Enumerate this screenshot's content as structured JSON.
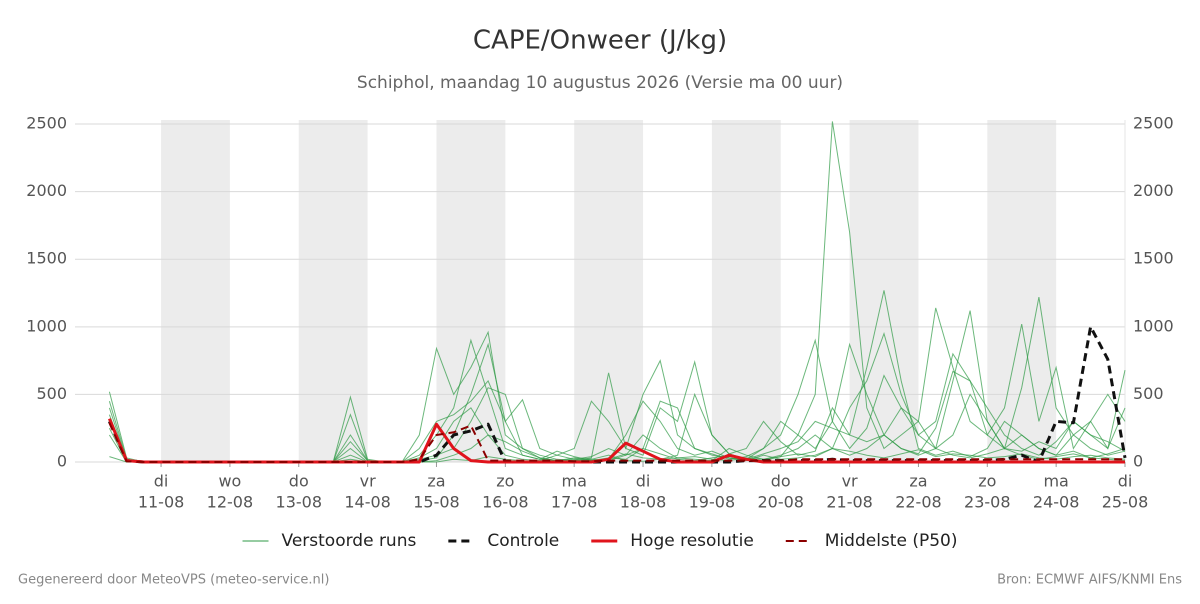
{
  "chart_data": {
    "type": "line",
    "title": "CAPE/Onweer (J/kg)",
    "subtitle": "Schiphol, maandag 10 augustus 2026 (Versie ma 00 uur)",
    "footer_left": "Gegenereerd door MeteoVPS (meteo-service.nl)",
    "footer_right": "Bron: ECMWF AIFS/KNMI Ens",
    "xlim": [
      -0.25,
      15
    ],
    "xticks": [
      {
        "value": 1,
        "label": "11-08",
        "weekday": "di"
      },
      {
        "value": 2,
        "label": "12-08",
        "weekday": "wo"
      },
      {
        "value": 3,
        "label": "13-08",
        "weekday": "do"
      },
      {
        "value": 4,
        "label": "14-08",
        "weekday": "vr"
      },
      {
        "value": 5,
        "label": "15-08",
        "weekday": "za"
      },
      {
        "value": 6,
        "label": "16-08",
        "weekday": "zo"
      },
      {
        "value": 7,
        "label": "17-08",
        "weekday": "ma"
      },
      {
        "value": 8,
        "label": "18-08",
        "weekday": "di"
      },
      {
        "value": 9,
        "label": "19-08",
        "weekday": "wo"
      },
      {
        "value": 10,
        "label": "20-08",
        "weekday": "do"
      },
      {
        "value": 11,
        "label": "21-08",
        "weekday": "vr"
      },
      {
        "value": 12,
        "label": "22-08",
        "weekday": "za"
      },
      {
        "value": 13,
        "label": "23-08",
        "weekday": "zo"
      },
      {
        "value": 14,
        "label": "24-08",
        "weekday": "ma"
      },
      {
        "value": 15,
        "label": "25-08",
        "weekday": "di"
      }
    ],
    "ylim": [
      0,
      2530
    ],
    "yticks": [
      0,
      500,
      1000,
      1500,
      2000,
      2500
    ],
    "grid": true,
    "x": [
      0.25,
      0.5,
      0.75,
      1,
      1.25,
      1.5,
      1.75,
      2,
      2.25,
      2.5,
      2.75,
      3,
      3.25,
      3.5,
      3.75,
      4,
      4.25,
      4.5,
      4.75,
      5,
      5.25,
      5.5,
      5.75,
      6,
      6.25,
      6.5,
      6.75,
      7,
      7.25,
      7.5,
      7.75,
      8,
      8.25,
      8.5,
      8.75,
      9,
      9.25,
      9.5,
      9.75,
      10,
      10.25,
      10.5,
      10.75,
      11,
      11.25,
      11.5,
      11.75,
      12,
      12.25,
      12.5,
      12.75,
      13,
      13.25,
      13.5,
      13.75,
      14,
      14.25,
      14.5,
      14.75,
      15
    ],
    "ensemble": {
      "name": "Verstoorde runs",
      "color": "#2e9a45",
      "runs": [
        [
          400,
          10,
          0,
          0,
          0,
          0,
          0,
          0,
          0,
          0,
          0,
          0,
          0,
          0,
          480,
          20,
          0,
          0,
          100,
          300,
          350,
          450,
          600,
          300,
          50,
          20,
          10,
          30,
          20,
          10,
          50,
          100,
          60,
          20,
          10,
          30,
          50,
          20,
          10,
          40,
          200,
          500,
          2520,
          1700,
          400,
          100,
          200,
          300,
          100,
          50,
          30,
          60,
          100,
          50,
          20,
          40,
          60,
          30,
          20,
          10
        ],
        [
          250,
          0,
          0,
          0,
          0,
          0,
          0,
          0,
          0,
          0,
          0,
          0,
          0,
          0,
          150,
          10,
          0,
          0,
          50,
          200,
          400,
          900,
          500,
          100,
          50,
          20,
          80,
          40,
          10,
          20,
          200,
          450,
          300,
          100,
          50,
          80,
          30,
          20,
          60,
          100,
          150,
          300,
          250,
          200,
          700,
          1270,
          600,
          100,
          50,
          80,
          40,
          100,
          300,
          200,
          100,
          50,
          80,
          30,
          60,
          100
        ],
        [
          300,
          5,
          0,
          0,
          0,
          0,
          0,
          0,
          0,
          0,
          0,
          0,
          0,
          0,
          350,
          10,
          0,
          0,
          200,
          840,
          500,
          700,
          960,
          200,
          100,
          50,
          20,
          10,
          30,
          660,
          100,
          50,
          400,
          300,
          740,
          200,
          60,
          20,
          100,
          300,
          200,
          100,
          300,
          870,
          500,
          200,
          400,
          300,
          1140,
          700,
          300,
          200,
          100,
          80,
          150,
          100,
          300,
          200,
          100,
          400
        ],
        [
          200,
          0,
          0,
          0,
          0,
          0,
          0,
          0,
          0,
          0,
          0,
          0,
          0,
          0,
          100,
          0,
          0,
          0,
          30,
          100,
          300,
          400,
          200,
          50,
          20,
          10,
          50,
          100,
          450,
          300,
          100,
          500,
          750,
          200,
          100,
          60,
          20,
          40,
          100,
          200,
          500,
          900,
          300,
          100,
          250,
          640,
          400,
          200,
          100,
          600,
          1120,
          300,
          100,
          550,
          1220,
          400,
          200,
          300,
          100,
          680
        ],
        [
          450,
          20,
          0,
          0,
          0,
          0,
          0,
          0,
          0,
          0,
          0,
          0,
          0,
          0,
          200,
          10,
          0,
          0,
          20,
          50,
          100,
          300,
          550,
          500,
          100,
          30,
          10,
          20,
          40,
          100,
          50,
          200,
          100,
          30,
          20,
          10,
          100,
          50,
          20,
          50,
          100,
          200,
          100,
          50,
          100,
          200,
          100,
          50,
          100,
          200,
          500,
          300,
          100,
          200,
          100,
          50,
          200,
          100,
          50,
          80
        ],
        [
          350,
          10,
          0,
          0,
          0,
          0,
          0,
          0,
          0,
          0,
          0,
          0,
          0,
          0,
          50,
          0,
          0,
          0,
          10,
          30,
          200,
          500,
          870,
          300,
          460,
          100,
          50,
          20,
          10,
          30,
          20,
          100,
          450,
          400,
          100,
          50,
          30,
          10,
          50,
          20,
          30,
          50,
          100,
          400,
          600,
          950,
          500,
          200,
          300,
          800,
          600,
          200,
          400,
          1020,
          300,
          700,
          100,
          300,
          500,
          300
        ],
        [
          520,
          30,
          0,
          0,
          0,
          0,
          0,
          0,
          0,
          0,
          0,
          0,
          0,
          0,
          20,
          0,
          0,
          0,
          0,
          10,
          50,
          100,
          200,
          150,
          80,
          30,
          10,
          0,
          10,
          20,
          60,
          30,
          20,
          50,
          500,
          200,
          60,
          100,
          300,
          150,
          50,
          80,
          400,
          200,
          150,
          200,
          100,
          60,
          250,
          670,
          600,
          400,
          200,
          100,
          50,
          150,
          300,
          200,
          150,
          80
        ],
        [
          40,
          0,
          0,
          0,
          0,
          0,
          0,
          0,
          0,
          0,
          0,
          0,
          0,
          0,
          0,
          0,
          0,
          0,
          0,
          0,
          20,
          10,
          40,
          20,
          10,
          5,
          0,
          10,
          20,
          50,
          10,
          5,
          20,
          30,
          40,
          20,
          10,
          30,
          20,
          40,
          60,
          40,
          100,
          80,
          50,
          30,
          60,
          90,
          40,
          60,
          50,
          30,
          40,
          60,
          30,
          20,
          40,
          50,
          30,
          20
        ]
      ]
    },
    "series": [
      {
        "name": "Controle",
        "color": "#111111",
        "dashed": true,
        "width": 3,
        "values": [
          300,
          10,
          0,
          0,
          0,
          0,
          0,
          0,
          0,
          0,
          0,
          0,
          0,
          0,
          0,
          0,
          0,
          0,
          0,
          50,
          200,
          230,
          280,
          0,
          0,
          0,
          0,
          0,
          0,
          0,
          0,
          0,
          0,
          0,
          0,
          0,
          0,
          10,
          10,
          10,
          10,
          10,
          20,
          10,
          10,
          10,
          10,
          10,
          10,
          10,
          10,
          10,
          20,
          50,
          0,
          300,
          290,
          1000,
          760,
          30
        ]
      },
      {
        "name": "Hoge resolutie",
        "color": "#e0141c",
        "dashed": false,
        "width": 3,
        "values": [
          320,
          10,
          0,
          0,
          0,
          0,
          0,
          0,
          0,
          0,
          0,
          0,
          0,
          0,
          0,
          0,
          0,
          0,
          0,
          280,
          100,
          10,
          0,
          0,
          0,
          0,
          0,
          0,
          0,
          20,
          140,
          80,
          20,
          0,
          0,
          0,
          50,
          20,
          0,
          0,
          0,
          0,
          0,
          0,
          0,
          0,
          0,
          0,
          0,
          0,
          0,
          0,
          0,
          0,
          0,
          0,
          0,
          0,
          0,
          0
        ]
      },
      {
        "name": "Middelste (P50)",
        "color": "#8b0000",
        "dashed": true,
        "width": 2,
        "values": [
          290,
          5,
          0,
          0,
          0,
          0,
          0,
          0,
          0,
          0,
          0,
          0,
          0,
          0,
          0,
          0,
          0,
          0,
          20,
          200,
          220,
          270,
          10,
          10,
          10,
          10,
          10,
          5,
          5,
          10,
          10,
          10,
          10,
          10,
          10,
          10,
          10,
          10,
          10,
          10,
          20,
          20,
          20,
          20,
          20,
          20,
          20,
          20,
          20,
          20,
          20,
          20,
          20,
          20,
          20,
          20,
          20,
          20,
          20,
          20
        ]
      }
    ]
  }
}
